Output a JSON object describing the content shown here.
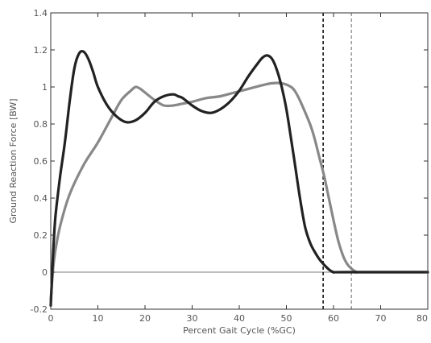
{
  "chart_data": {
    "type": "line",
    "title": "",
    "xlabel": "Percent Gait Cycle (%GC)",
    "ylabel": "Ground Reaction Force [BW]",
    "xlim": [
      0,
      80
    ],
    "ylim": [
      -0.2,
      1.4
    ],
    "xticks": [
      "0",
      "10",
      "20",
      "30",
      "40",
      "50",
      "60",
      "70",
      "80"
    ],
    "yticks": [
      "-0.2",
      "0",
      "0.2",
      "0.4",
      "0.6",
      "0.8",
      "1",
      "1.2",
      "1.4"
    ],
    "grid": false,
    "series": [
      {
        "color": "#888888",
        "x": [
          0,
          0.5,
          1,
          2,
          4,
          7,
          10,
          13,
          15,
          17,
          18,
          19,
          20,
          22,
          24,
          26,
          28,
          30,
          33,
          36,
          39,
          42,
          45,
          47,
          49,
          51,
          52,
          53,
          55,
          56,
          57,
          58,
          59,
          60,
          61,
          62,
          63,
          64,
          65,
          66,
          80
        ],
        "y": [
          -0.15,
          0.02,
          0.12,
          0.25,
          0.42,
          0.58,
          0.7,
          0.84,
          0.93,
          0.98,
          1.0,
          0.99,
          0.97,
          0.93,
          0.9,
          0.9,
          0.91,
          0.92,
          0.94,
          0.95,
          0.97,
          0.99,
          1.01,
          1.02,
          1.02,
          1.0,
          0.97,
          0.92,
          0.8,
          0.72,
          0.62,
          0.52,
          0.4,
          0.28,
          0.17,
          0.09,
          0.04,
          0.015,
          0.0,
          0.0,
          0.0
        ]
      },
      {
        "color": "#222222",
        "x": [
          0,
          0.5,
          1,
          2,
          3,
          4,
          5,
          6,
          7,
          8,
          9,
          10,
          12,
          14,
          16,
          18,
          20,
          22,
          24,
          26,
          27,
          28,
          30,
          32,
          34,
          36,
          38,
          40,
          42,
          44,
          45,
          46,
          47,
          48,
          49,
          50,
          51,
          52,
          53,
          54,
          55,
          56,
          57,
          58,
          59,
          60,
          62,
          80
        ],
        "y": [
          -0.18,
          0.1,
          0.3,
          0.52,
          0.7,
          0.92,
          1.1,
          1.18,
          1.19,
          1.15,
          1.08,
          1.0,
          0.9,
          0.84,
          0.81,
          0.82,
          0.86,
          0.92,
          0.95,
          0.96,
          0.95,
          0.94,
          0.9,
          0.87,
          0.86,
          0.88,
          0.92,
          0.98,
          1.06,
          1.13,
          1.16,
          1.17,
          1.15,
          1.09,
          1.0,
          0.88,
          0.72,
          0.55,
          0.38,
          0.24,
          0.16,
          0.11,
          0.07,
          0.04,
          0.015,
          0.0,
          0.0,
          0.0
        ]
      }
    ],
    "reference_lines": [
      {
        "orientation": "horizontal",
        "value": 0,
        "color": "#aaaaaa",
        "style": "solid"
      },
      {
        "orientation": "vertical",
        "value": 57.8,
        "color": "#000000",
        "style": "dashed"
      },
      {
        "orientation": "vertical",
        "value": 63.8,
        "color": "#999999",
        "style": "dashed"
      }
    ]
  }
}
